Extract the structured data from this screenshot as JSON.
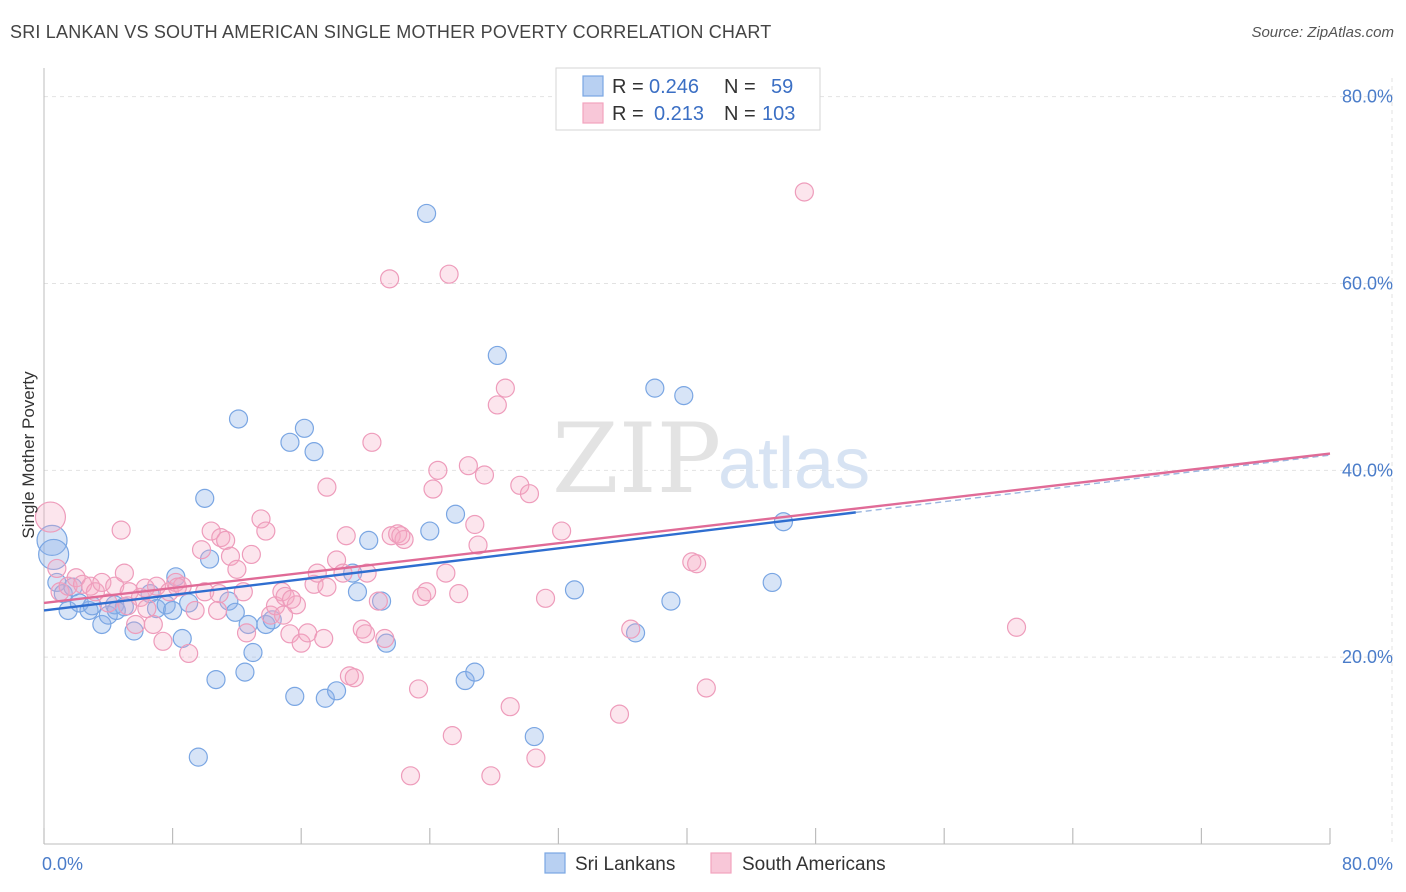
{
  "header": {
    "title": "SRI LANKAN VS SOUTH AMERICAN SINGLE MOTHER POVERTY CORRELATION CHART",
    "source": "Source: ZipAtlas.com"
  },
  "watermark": {
    "zip": "ZIP",
    "atlas": "atlas"
  },
  "legend": {
    "r_label": "R =",
    "n_label": "N =",
    "entries": [
      {
        "r": "0.246",
        "n": "59"
      },
      {
        "r": "0.213",
        "n": "103"
      }
    ]
  },
  "chart_data": {
    "type": "scatter",
    "title": "SRI LANKAN VS SOUTH AMERICAN SINGLE MOTHER POVERTY CORRELATION CHART",
    "xlabel": "",
    "ylabel": "Single Mother Poverty",
    "xlim": [
      0,
      80
    ],
    "ylim": [
      0,
      82
    ],
    "x_tick_labels": [
      "0.0%",
      "80.0%"
    ],
    "y_ticks": [
      20,
      40,
      60,
      80
    ],
    "y_tick_labels": [
      "20.0%",
      "40.0%",
      "60.0%",
      "80.0%"
    ],
    "grid": true,
    "legend_position": "top-center",
    "colors": {
      "blue": "#7aa6e3",
      "pink": "#f2a3bf",
      "blue_line": "#2f6ed0",
      "pink_line": "#e06b97"
    },
    "series": [
      {
        "name": "Sri Lankans",
        "color": "#7aa6e3",
        "trend": {
          "x": [
            0,
            50.5
          ],
          "y": [
            25.0,
            35.5
          ]
        },
        "points": [
          [
            0.5,
            32.5
          ],
          [
            0.6,
            31.0
          ],
          [
            0.8,
            28.0
          ],
          [
            1.2,
            26.8
          ],
          [
            1.5,
            25.0
          ],
          [
            1.8,
            27.5
          ],
          [
            2.2,
            25.8
          ],
          [
            2.8,
            25.0
          ],
          [
            3.0,
            25.5
          ],
          [
            3.6,
            23.5
          ],
          [
            4.0,
            24.5
          ],
          [
            4.4,
            25.6
          ],
          [
            5.0,
            25.4
          ],
          [
            5.6,
            22.8
          ],
          [
            6.6,
            26.8
          ],
          [
            7.0,
            25.2
          ],
          [
            8.2,
            28.6
          ],
          [
            8.6,
            22.0
          ],
          [
            9.0,
            25.8
          ],
          [
            9.6,
            9.3
          ],
          [
            10.0,
            37.0
          ],
          [
            10.3,
            30.5
          ],
          [
            10.7,
            17.6
          ],
          [
            11.5,
            26.0
          ],
          [
            11.9,
            24.8
          ],
          [
            12.1,
            45.5
          ],
          [
            12.5,
            18.4
          ],
          [
            13.0,
            20.5
          ],
          [
            13.8,
            23.5
          ],
          [
            14.2,
            24.0
          ],
          [
            15.3,
            43.0
          ],
          [
            15.6,
            15.8
          ],
          [
            16.2,
            44.5
          ],
          [
            16.8,
            42.0
          ],
          [
            17.5,
            15.6
          ],
          [
            18.2,
            16.4
          ],
          [
            19.2,
            29.0
          ],
          [
            19.5,
            27.0
          ],
          [
            20.2,
            32.5
          ],
          [
            21.0,
            26.0
          ],
          [
            21.3,
            21.5
          ],
          [
            23.8,
            67.5
          ],
          [
            24.0,
            33.5
          ],
          [
            25.6,
            35.3
          ],
          [
            26.2,
            17.5
          ],
          [
            26.8,
            18.4
          ],
          [
            28.2,
            52.3
          ],
          [
            30.5,
            11.5
          ],
          [
            33.0,
            27.2
          ],
          [
            36.8,
            22.6
          ],
          [
            38.0,
            48.8
          ],
          [
            39.0,
            26.0
          ],
          [
            39.8,
            48.0
          ],
          [
            45.3,
            28.0
          ],
          [
            46.0,
            34.5
          ],
          [
            12.7,
            23.5
          ],
          [
            4.5,
            25.0
          ],
          [
            7.6,
            25.6
          ],
          [
            8.0,
            25.0
          ]
        ]
      },
      {
        "name": "South Americans",
        "color": "#f2a3bf",
        "trend": {
          "x": [
            0,
            80
          ],
          "y": [
            25.8,
            41.8
          ]
        },
        "points": [
          [
            0.4,
            35.0
          ],
          [
            0.8,
            29.5
          ],
          [
            1.0,
            27.0
          ],
          [
            1.5,
            27.6
          ],
          [
            2.0,
            28.5
          ],
          [
            2.4,
            27.8
          ],
          [
            2.9,
            27.6
          ],
          [
            3.2,
            27.0
          ],
          [
            3.6,
            28.0
          ],
          [
            4.0,
            25.8
          ],
          [
            4.4,
            27.6
          ],
          [
            4.8,
            33.6
          ],
          [
            5.0,
            29.0
          ],
          [
            5.3,
            27.0
          ],
          [
            5.7,
            23.5
          ],
          [
            6.0,
            26.4
          ],
          [
            6.4,
            25.2
          ],
          [
            6.8,
            23.5
          ],
          [
            7.0,
            27.6
          ],
          [
            7.4,
            21.7
          ],
          [
            7.8,
            27.0
          ],
          [
            8.2,
            28.0
          ],
          [
            8.6,
            27.6
          ],
          [
            9.0,
            20.4
          ],
          [
            9.4,
            25.0
          ],
          [
            9.8,
            31.5
          ],
          [
            10.0,
            27.0
          ],
          [
            10.4,
            33.5
          ],
          [
            10.8,
            25.0
          ],
          [
            11.0,
            32.8
          ],
          [
            11.3,
            32.5
          ],
          [
            11.6,
            30.8
          ],
          [
            12.0,
            29.4
          ],
          [
            12.4,
            27.0
          ],
          [
            12.6,
            22.6
          ],
          [
            12.9,
            31.0
          ],
          [
            13.5,
            34.8
          ],
          [
            13.8,
            33.5
          ],
          [
            14.1,
            24.5
          ],
          [
            14.4,
            25.5
          ],
          [
            14.8,
            27.0
          ],
          [
            15.0,
            26.5
          ],
          [
            15.3,
            22.5
          ],
          [
            15.7,
            25.6
          ],
          [
            16.0,
            21.5
          ],
          [
            16.4,
            22.6
          ],
          [
            16.8,
            27.8
          ],
          [
            17.0,
            29.0
          ],
          [
            17.4,
            22.0
          ],
          [
            17.6,
            38.2
          ],
          [
            18.2,
            30.4
          ],
          [
            18.6,
            29.0
          ],
          [
            18.8,
            33.0
          ],
          [
            19.0,
            18.0
          ],
          [
            19.3,
            17.8
          ],
          [
            19.8,
            23.0
          ],
          [
            20.0,
            22.5
          ],
          [
            20.4,
            43.0
          ],
          [
            20.8,
            26.0
          ],
          [
            21.2,
            22.0
          ],
          [
            21.6,
            33.0
          ],
          [
            22.0,
            33.2
          ],
          [
            22.4,
            32.6
          ],
          [
            22.8,
            7.3
          ],
          [
            23.3,
            16.6
          ],
          [
            23.5,
            26.5
          ],
          [
            23.8,
            27.0
          ],
          [
            24.2,
            38.0
          ],
          [
            24.5,
            40.0
          ],
          [
            25.0,
            29.0
          ],
          [
            25.4,
            11.6
          ],
          [
            25.8,
            26.8
          ],
          [
            26.4,
            40.5
          ],
          [
            26.8,
            34.2
          ],
          [
            27.4,
            39.5
          ],
          [
            27.8,
            7.3
          ],
          [
            28.2,
            47.0
          ],
          [
            28.7,
            48.8
          ],
          [
            29.0,
            14.7
          ],
          [
            29.6,
            38.4
          ],
          [
            30.2,
            37.5
          ],
          [
            30.6,
            9.2
          ],
          [
            31.2,
            26.3
          ],
          [
            32.2,
            33.5
          ],
          [
            35.8,
            13.9
          ],
          [
            36.5,
            23.0
          ],
          [
            40.3,
            30.2
          ],
          [
            40.6,
            30.0
          ],
          [
            41.2,
            16.7
          ],
          [
            47.3,
            69.8
          ],
          [
            60.5,
            23.2
          ],
          [
            21.5,
            60.5
          ],
          [
            25.2,
            61.0
          ],
          [
            5.2,
            25.5
          ],
          [
            6.3,
            27.4
          ],
          [
            8.3,
            27.5
          ],
          [
            10.9,
            26.8
          ],
          [
            14.9,
            24.5
          ],
          [
            17.6,
            27.5
          ],
          [
            20.1,
            29.0
          ],
          [
            22.2,
            33.0
          ],
          [
            15.4,
            26.2
          ],
          [
            27.0,
            32.0
          ]
        ]
      }
    ]
  },
  "bottom_legend": {
    "items": [
      {
        "label": "Sri Lankans",
        "color": "#b8d0f2",
        "border": "#7aa6e3"
      },
      {
        "label": "South Americans",
        "color": "#f8c7d8",
        "border": "#f2a3bf"
      }
    ]
  }
}
